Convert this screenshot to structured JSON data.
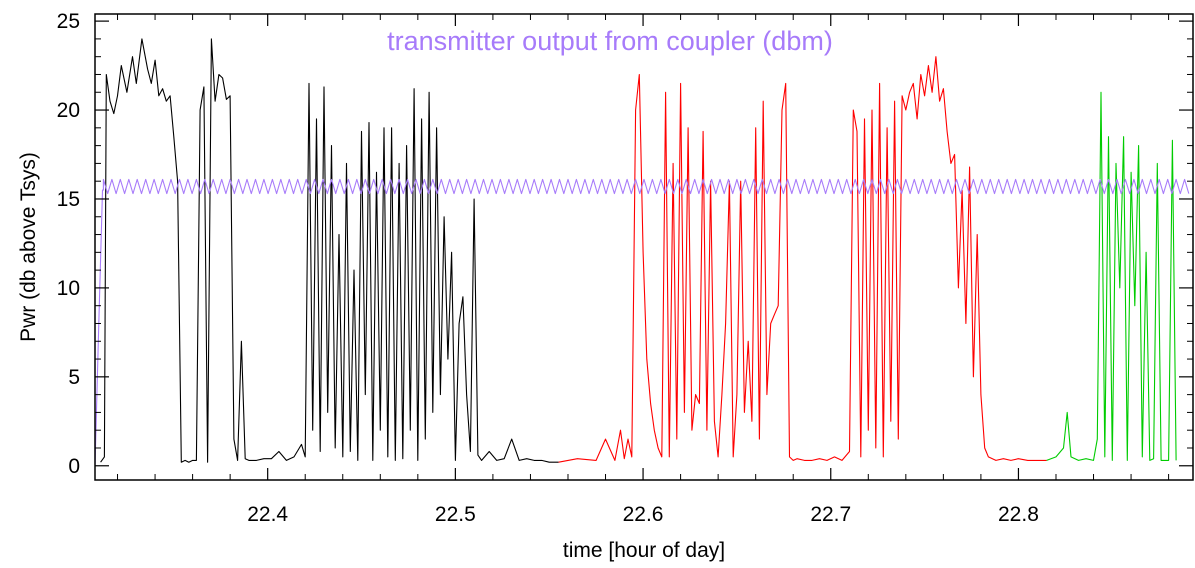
{
  "chart_data": {
    "type": "line",
    "title": "",
    "xlabel": "time [hour of day]",
    "ylabel": "Pwr (db above Tsys)",
    "xlim": [
      22.308,
      22.893
    ],
    "ylim": [
      -0.8,
      25.4
    ],
    "x_ticks": [
      22.4,
      22.5,
      22.6,
      22.7,
      22.8
    ],
    "x_tick_labels": [
      "22.4",
      "22.5",
      "22.6",
      "22.7",
      "22.8"
    ],
    "y_ticks": [
      0,
      5,
      10,
      15,
      20,
      25
    ],
    "y_tick_labels": [
      "0",
      "5",
      "10",
      "15",
      "20",
      "25"
    ],
    "grid": false,
    "annotation": {
      "text": "transmitter output from coupler (dbm)",
      "color": "#a77bfa"
    },
    "series": [
      {
        "color": "#000000",
        "x": [
          22.311,
          22.313,
          22.314,
          22.316,
          22.318,
          22.32,
          22.322,
          22.325,
          22.328,
          22.33,
          22.333,
          22.336,
          22.338,
          22.34,
          22.342,
          22.344,
          22.346,
          22.348,
          22.35,
          22.352,
          22.354,
          22.356,
          22.358,
          22.36,
          22.362,
          22.364,
          22.366,
          22.368,
          22.37,
          22.372,
          22.374,
          22.376,
          22.378,
          22.38,
          22.382,
          22.384,
          22.386,
          22.388,
          22.39,
          22.394,
          22.398,
          22.402,
          22.406,
          22.41,
          22.414,
          22.418,
          22.42,
          22.422,
          22.424,
          22.426,
          22.428,
          22.43,
          22.432,
          22.434,
          22.436,
          22.438,
          22.44,
          22.442,
          22.444,
          22.446,
          22.448,
          22.45,
          22.452,
          22.454,
          22.456,
          22.458,
          22.46,
          22.462,
          22.464,
          22.466,
          22.468,
          22.47,
          22.472,
          22.474,
          22.476,
          22.478,
          22.48,
          22.482,
          22.484,
          22.486,
          22.488,
          22.49,
          22.492,
          22.494,
          22.496,
          22.498,
          22.5,
          22.502,
          22.504,
          22.506,
          22.508,
          22.51,
          22.512,
          22.514,
          22.518,
          22.522,
          22.526,
          22.53,
          22.534,
          22.538,
          22.542,
          22.546,
          22.55,
          22.555
        ],
        "y": [
          0.2,
          0.5,
          22.0,
          20.5,
          19.8,
          20.8,
          22.5,
          21.0,
          23.0,
          21.5,
          24.0,
          22.3,
          21.5,
          22.8,
          20.8,
          21.2,
          20.5,
          20.8,
          18.5,
          16.0,
          0.2,
          0.3,
          0.2,
          0.3,
          0.3,
          20.0,
          21.3,
          0.2,
          24.0,
          20.5,
          22.0,
          21.8,
          20.6,
          20.8,
          1.5,
          0.3,
          7.0,
          0.4,
          0.3,
          0.3,
          0.4,
          0.4,
          0.8,
          0.3,
          0.5,
          1.2,
          0.5,
          21.5,
          2.0,
          19.5,
          0.8,
          21.3,
          3.0,
          18.0,
          1.0,
          13.0,
          0.5,
          17.0,
          0.8,
          11.0,
          0.3,
          18.8,
          4.0,
          19.3,
          0.3,
          16.5,
          2.0,
          19.0,
          0.5,
          19.0,
          0.3,
          17.0,
          0.4,
          18.0,
          2.0,
          21.2,
          0.3,
          19.5,
          1.5,
          21.0,
          3.0,
          19.0,
          4.0,
          14.0,
          6.0,
          12.0,
          0.3,
          8.0,
          9.5,
          4.0,
          0.8,
          15.0,
          0.6,
          0.3,
          0.8,
          0.3,
          0.4,
          1.5,
          0.3,
          0.4,
          0.3,
          0.3,
          0.2,
          0.2
        ]
      },
      {
        "color": "#ff0000",
        "x": [
          22.555,
          22.565,
          22.575,
          22.58,
          22.585,
          22.588,
          22.59,
          22.592,
          22.594,
          22.596,
          22.598,
          22.6,
          22.602,
          22.604,
          22.606,
          22.608,
          22.61,
          22.612,
          22.614,
          22.616,
          22.618,
          22.62,
          22.622,
          22.624,
          22.626,
          22.628,
          22.63,
          22.632,
          22.634,
          22.636,
          22.638,
          22.64,
          22.642,
          22.644,
          22.646,
          22.648,
          22.65,
          22.652,
          22.654,
          22.656,
          22.658,
          22.66,
          22.662,
          22.664,
          22.666,
          22.668,
          22.67,
          22.672,
          22.674,
          22.676,
          22.678,
          22.68,
          22.682,
          22.686,
          22.69,
          22.694,
          22.698,
          22.702,
          22.706,
          22.71,
          22.712,
          22.714,
          22.716,
          22.718,
          22.72,
          22.722,
          22.724,
          22.726,
          22.728,
          22.73,
          22.732,
          22.734,
          22.736,
          22.738,
          22.74,
          22.742,
          22.744,
          22.746,
          22.748,
          22.75,
          22.752,
          22.754,
          22.756,
          22.758,
          22.76,
          22.762,
          22.764,
          22.766,
          22.768,
          22.77,
          22.772,
          22.774,
          22.776,
          22.778,
          22.78,
          22.782,
          22.784,
          22.788,
          22.792,
          22.796,
          22.8,
          22.805,
          22.81,
          22.815
        ],
        "y": [
          0.2,
          0.4,
          0.3,
          1.5,
          0.3,
          2.0,
          0.4,
          1.5,
          0.5,
          20.0,
          22.0,
          12.0,
          6.0,
          3.5,
          2.0,
          1.0,
          0.5,
          21.0,
          0.5,
          17.0,
          1.5,
          21.5,
          3.0,
          19.0,
          2.0,
          4.0,
          3.5,
          18.8,
          2.0,
          16.0,
          2.5,
          0.5,
          4.0,
          8.0,
          16.0,
          0.5,
          4.0,
          16.0,
          3.0,
          7.0,
          2.5,
          19.0,
          1.5,
          20.5,
          4.0,
          8.0,
          8.5,
          9.0,
          20.0,
          21.5,
          0.5,
          0.3,
          0.4,
          0.3,
          0.3,
          0.4,
          0.3,
          0.5,
          0.3,
          0.8,
          20.0,
          18.8,
          0.5,
          19.5,
          2.0,
          20.0,
          1.0,
          21.5,
          0.5,
          19.0,
          2.5,
          20.5,
          1.5,
          20.8,
          20.0,
          21.0,
          21.5,
          19.5,
          22.0,
          20.8,
          22.5,
          21.0,
          23.0,
          20.5,
          21.2,
          18.8,
          17.0,
          17.5,
          10.0,
          15.5,
          8.0,
          16.8,
          5.0,
          13.0,
          4.0,
          1.0,
          0.5,
          0.3,
          0.4,
          0.3,
          0.4,
          0.3,
          0.3,
          0.3
        ]
      },
      {
        "color": "#00cc00",
        "x": [
          22.815,
          22.82,
          22.824,
          22.826,
          22.828,
          22.832,
          22.836,
          22.84,
          22.842,
          22.844,
          22.846,
          22.848,
          22.85,
          22.852,
          22.854,
          22.856,
          22.858,
          22.86,
          22.862,
          22.864,
          22.866,
          22.868,
          22.87,
          22.872,
          22.874,
          22.876,
          22.878,
          22.88,
          22.882,
          22.884
        ],
        "y": [
          0.3,
          0.5,
          1.0,
          3.0,
          0.5,
          0.3,
          0.4,
          0.3,
          1.5,
          21.0,
          0.5,
          18.5,
          0.3,
          17.0,
          10.0,
          18.5,
          0.3,
          16.5,
          9.0,
          18.0,
          0.5,
          12.0,
          0.3,
          0.4,
          17.0,
          0.3,
          0.3,
          0.3,
          18.3,
          0.3
        ]
      },
      {
        "color": "#a77bfa",
        "x": [
          22.308,
          22.31,
          22.312,
          22.3125
        ],
        "y": [
          0.0,
          8.0,
          15.5,
          15.5
        ],
        "wave": {
          "x_start": 22.3125,
          "x_end": 22.893,
          "base": 15.7,
          "amplitude": 0.4,
          "period": 0.0045
        }
      }
    ]
  }
}
